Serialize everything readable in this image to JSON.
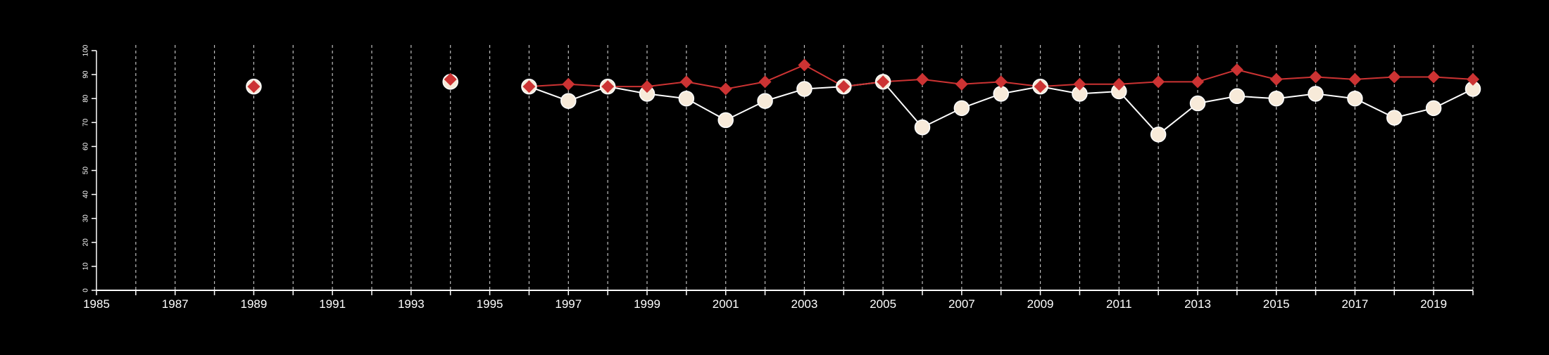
{
  "chart_data": {
    "type": "line",
    "x_ticks": [
      "1985",
      "1987",
      "1989",
      "1991",
      "1993",
      "1995",
      "1997",
      "1999",
      "2001",
      "2003",
      "2005",
      "2007",
      "2009",
      "2011",
      "2013",
      "2015",
      "2017",
      "2019"
    ],
    "y_ticks": [
      "0",
      "10",
      "20",
      "30",
      "40",
      "50",
      "60",
      "70",
      "80",
      "90",
      "100"
    ],
    "xlim": [
      1985,
      2020
    ],
    "ylim": [
      0,
      100
    ],
    "grid": {
      "vertical_dashed": true,
      "horizontal": false
    },
    "colors": {
      "background": "#000000",
      "axis": "#ffffff",
      "grid": "#bfbfbf",
      "series_white": "#ffffff",
      "series_white_fill": "#f7ead9",
      "series_red": "#cc3333"
    },
    "series": [
      {
        "marker": "circle",
        "x": [
          1989,
          1994,
          1996,
          1997,
          1998,
          1999,
          2000,
          2001,
          2002,
          2003,
          2004,
          2005,
          2006,
          2007,
          2008,
          2009,
          2010,
          2011,
          2012,
          2013,
          2014,
          2015,
          2016,
          2017,
          2018,
          2019,
          2020
        ],
        "y": [
          85,
          87,
          85,
          79,
          85,
          82,
          80,
          71,
          79,
          84,
          85,
          87,
          68,
          76,
          82,
          85,
          82,
          83,
          65,
          78,
          81,
          80,
          82,
          80,
          72,
          76,
          84
        ]
      },
      {
        "marker": "diamond",
        "x": [
          1989,
          1994,
          1996,
          1997,
          1998,
          1999,
          2000,
          2001,
          2002,
          2003,
          2004,
          2005,
          2006,
          2007,
          2008,
          2009,
          2010,
          2011,
          2012,
          2013,
          2014,
          2015,
          2016,
          2017,
          2018,
          2019,
          2020
        ],
        "y": [
          85,
          88,
          85,
          86,
          85,
          85,
          87,
          84,
          87,
          94,
          85,
          87,
          88,
          86,
          87,
          85,
          86,
          86,
          87,
          87,
          92,
          88,
          89,
          88,
          89,
          89,
          88
        ]
      }
    ]
  }
}
